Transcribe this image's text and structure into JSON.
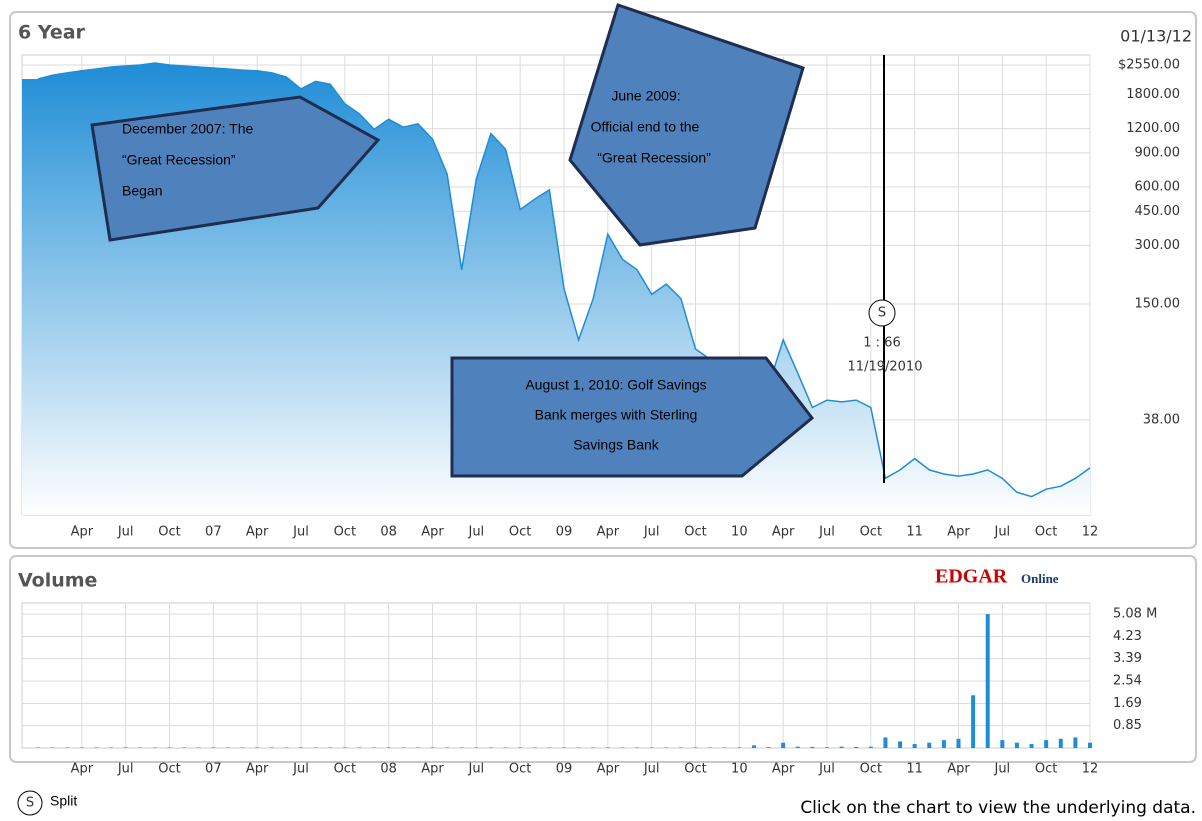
{
  "chart_data": [
    {
      "type": "area",
      "title": "6 Year",
      "date": "01/13/12",
      "color": "#1f8dd6",
      "log_scale": true,
      "grid": true,
      "categories": [
        null,
        null,
        null,
        "Apr",
        null,
        null,
        "Jul",
        null,
        null,
        "Oct",
        null,
        null,
        "07",
        null,
        null,
        "Apr",
        null,
        null,
        "Jul",
        null,
        null,
        "Oct",
        null,
        null,
        "08",
        null,
        null,
        "Apr",
        null,
        null,
        "Jul",
        null,
        null,
        "Oct",
        null,
        null,
        "09",
        null,
        null,
        "Apr",
        null,
        null,
        "Jul",
        null,
        null,
        "Oct",
        null,
        null,
        "10",
        null,
        null,
        "Apr",
        null,
        null,
        "Jul",
        null,
        null,
        "Oct",
        null,
        null,
        "11",
        null,
        null,
        "Apr",
        null,
        null,
        "Jul",
        null,
        null,
        "Oct",
        null,
        null,
        "12"
      ],
      "values": [
        2160,
        2260,
        2320,
        2380,
        2430,
        2490,
        2520,
        2550,
        2610,
        2550,
        2520,
        2490,
        2460,
        2430,
        2400,
        2380,
        2320,
        2210,
        1920,
        2100,
        2030,
        1610,
        1430,
        1190,
        1340,
        1220,
        1270,
        1060,
        700,
        225,
        660,
        1130,
        940,
        460,
        520,
        580,
        180,
        98,
        160,
        343,
        255,
        225,
        168,
        190,
        160,
        88,
        78,
        70,
        60,
        54,
        57,
        98,
        66,
        44,
        48,
        47,
        48,
        44,
        19,
        21,
        24,
        21,
        20,
        19.5,
        20,
        21,
        19,
        16.1,
        15.3,
        16.7,
        17.3,
        19,
        21.5
      ],
      "ylim": [
        12.3,
        2870
      ],
      "yticks": [
        {
          "value": 2550,
          "label": "$2550.00"
        },
        {
          "value": 1800,
          "label": "1800.00"
        },
        {
          "value": 1200,
          "label": "1200.00"
        },
        {
          "value": 900,
          "label": "900.00"
        },
        {
          "value": 600,
          "label": "600.00"
        },
        {
          "value": 450,
          "label": "450.00"
        },
        {
          "value": 300,
          "label": "300.00"
        },
        {
          "value": 150,
          "label": "150.00"
        },
        {
          "value": 38,
          "label": "38.00"
        }
      ],
      "annotations": [
        {
          "lines": [
            "December 2007:  The",
            "“Great Recession”",
            "Began"
          ]
        },
        {
          "lines": [
            "June 2009:",
            "Official end to the",
            "“Great Recession”"
          ]
        },
        {
          "lines": [
            "August 1, 2010:  Golf Savings",
            "Bank merges with Sterling",
            "Savings Bank"
          ]
        }
      ],
      "split": {
        "symbol": "S",
        "ratio": "1 : 66",
        "date": "11/19/2010"
      }
    },
    {
      "type": "bar",
      "title": "Volume",
      "color": "#1f8dd6",
      "grid": true,
      "logo": {
        "main": "EDGAR",
        "sub": "Online"
      },
      "categories": [
        null,
        null,
        null,
        "Apr",
        null,
        null,
        "Jul",
        null,
        null,
        "Oct",
        null,
        null,
        "07",
        null,
        null,
        "Apr",
        null,
        null,
        "Jul",
        null,
        null,
        "Oct",
        null,
        null,
        "08",
        null,
        null,
        "Apr",
        null,
        null,
        "Jul",
        null,
        null,
        "Oct",
        null,
        null,
        "09",
        null,
        null,
        "Apr",
        null,
        null,
        "Jul",
        null,
        null,
        "Oct",
        null,
        null,
        "10",
        null,
        null,
        "Apr",
        null,
        null,
        "Jul",
        null,
        null,
        "Oct",
        null,
        null,
        "11",
        null,
        null,
        "Apr",
        null,
        null,
        "Jul",
        null,
        null,
        "Oct",
        null,
        null,
        "12"
      ],
      "values": [
        0.02,
        0.02,
        0.02,
        0.02,
        0.02,
        0.02,
        0.02,
        0.02,
        0.02,
        0.02,
        0.02,
        0.02,
        0.02,
        0.02,
        0.02,
        0.02,
        0.02,
        0.02,
        0.02,
        0.02,
        0.02,
        0.02,
        0.02,
        0.02,
        0.02,
        0.02,
        0.02,
        0.02,
        0.02,
        0.02,
        0.02,
        0.02,
        0.02,
        0.02,
        0.02,
        0.02,
        0.02,
        0.02,
        0.02,
        0.02,
        0.02,
        0.02,
        0.02,
        0.02,
        0.02,
        0.02,
        0.02,
        0.02,
        0.02,
        0.1,
        0.03,
        0.2,
        0.05,
        0.04,
        0.03,
        0.05,
        0.04,
        0.05,
        0.4,
        0.25,
        0.15,
        0.2,
        0.3,
        0.35,
        2.0,
        5.08,
        0.3,
        0.2,
        0.15,
        0.3,
        0.35,
        0.4,
        0.2
      ],
      "ylim": [
        0,
        5.5
      ],
      "yticks": [
        {
          "value": 5.08,
          "label": "5.08 M"
        },
        4.23,
        3.39,
        2.54,
        1.69,
        0.85
      ]
    }
  ],
  "legend": {
    "symbol": "S",
    "label": "Split"
  },
  "footer": "Click on the chart to view the underlying data."
}
